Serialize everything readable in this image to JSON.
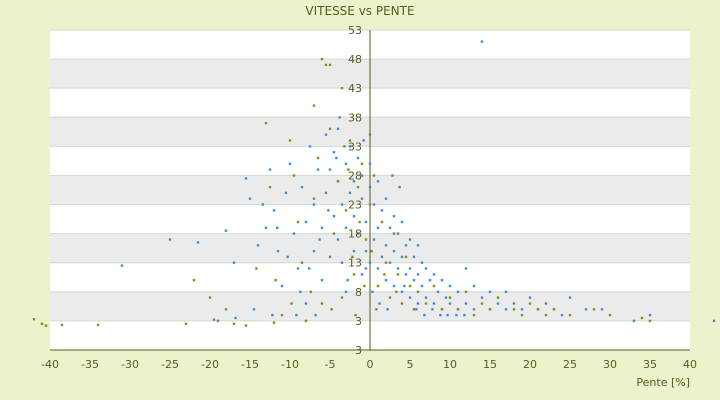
{
  "chart_data": {
    "type": "scatter",
    "title": "VITESSE vs PENTE",
    "xlabel": "Pente [%]",
    "ylabel": "",
    "xlim": [
      -40,
      40
    ],
    "ylim": [
      -2,
      53
    ],
    "x_ticks": [
      "-40",
      "-35",
      "-30",
      "-25",
      "-20",
      "-15",
      "-10",
      "-5",
      "0",
      "5",
      "10",
      "15",
      "20",
      "25",
      "30",
      "35",
      "40"
    ],
    "y_ticks": [
      "53",
      "48",
      "43",
      "38",
      "33",
      "28",
      "23",
      "18",
      "13",
      "8",
      "3",
      "3"
    ],
    "grid": true,
    "legend": "none",
    "colors": {
      "series_a": "#3a8ed8",
      "series_b": "#8a8a14",
      "band": "#ebebeb",
      "axis": "#5a5a1e"
    },
    "series": [
      {
        "color": "#3a8ed8",
        "points": [
          [
            -31,
            12.5
          ],
          [
            -25,
            17
          ],
          [
            -21.5,
            16.5
          ],
          [
            -18,
            18.5
          ],
          [
            -17,
            13
          ],
          [
            -15.5,
            27.5
          ],
          [
            -15,
            24
          ],
          [
            -14,
            16
          ],
          [
            -13,
            19
          ],
          [
            -12.5,
            29
          ],
          [
            -12,
            22
          ],
          [
            -11.5,
            15
          ],
          [
            -11,
            9
          ],
          [
            -10.5,
            25
          ],
          [
            -10,
            30
          ],
          [
            -9.5,
            18
          ],
          [
            -9,
            12
          ],
          [
            -8.5,
            26
          ],
          [
            -8,
            20
          ],
          [
            -8,
            6
          ],
          [
            -7.5,
            33
          ],
          [
            -7,
            15
          ],
          [
            -7,
            23
          ],
          [
            -6.5,
            29
          ],
          [
            -6,
            10
          ],
          [
            -6,
            19
          ],
          [
            -5.5,
            35
          ],
          [
            -5.5,
            25
          ],
          [
            -5,
            14
          ],
          [
            -5,
            29
          ],
          [
            -4.5,
            21
          ],
          [
            -4.5,
            32
          ],
          [
            -4,
            17
          ],
          [
            -4,
            27
          ],
          [
            -4,
            36
          ],
          [
            -3.5,
            23
          ],
          [
            -3.5,
            13
          ],
          [
            -3,
            30
          ],
          [
            -3,
            19
          ],
          [
            -3,
            8
          ],
          [
            -2.5,
            25
          ],
          [
            -2.5,
            33
          ],
          [
            -2,
            21
          ],
          [
            -2,
            15
          ],
          [
            -2,
            27
          ],
          [
            -1.5,
            18
          ],
          [
            -1.5,
            31
          ],
          [
            -1,
            24
          ],
          [
            -1,
            11
          ],
          [
            -1,
            28
          ],
          [
            -0.5,
            20
          ],
          [
            -0.5,
            15
          ],
          [
            0,
            26
          ],
          [
            0,
            13
          ],
          [
            0,
            30
          ],
          [
            0.5,
            17
          ],
          [
            0.5,
            23
          ],
          [
            1,
            12
          ],
          [
            1,
            19
          ],
          [
            1,
            27
          ],
          [
            1.5,
            14
          ],
          [
            1.5,
            22
          ],
          [
            2,
            10
          ],
          [
            2,
            16
          ],
          [
            2,
            24
          ],
          [
            2.5,
            13
          ],
          [
            2.5,
            19
          ],
          [
            3,
            9
          ],
          [
            3,
            15
          ],
          [
            3,
            21
          ],
          [
            3.5,
            12
          ],
          [
            3.5,
            18
          ],
          [
            4,
            8
          ],
          [
            4,
            14
          ],
          [
            4,
            20
          ],
          [
            4.5,
            11
          ],
          [
            4.5,
            16
          ],
          [
            5,
            7
          ],
          [
            5,
            12
          ],
          [
            5,
            17
          ],
          [
            5.5,
            10
          ],
          [
            5.5,
            14
          ],
          [
            6,
            6
          ],
          [
            6,
            11
          ],
          [
            6,
            16
          ],
          [
            6.5,
            9
          ],
          [
            6.5,
            13
          ],
          [
            7,
            7
          ],
          [
            7,
            12
          ],
          [
            7.5,
            10
          ],
          [
            8,
            6
          ],
          [
            8,
            11
          ],
          [
            8.5,
            8
          ],
          [
            9,
            5
          ],
          [
            9,
            10
          ],
          [
            9.5,
            7
          ],
          [
            10,
            6
          ],
          [
            10,
            9
          ],
          [
            11,
            5
          ],
          [
            11,
            8
          ],
          [
            12,
            6
          ],
          [
            12,
            12
          ],
          [
            13,
            5
          ],
          [
            13,
            9
          ],
          [
            14,
            51
          ],
          [
            14,
            7
          ],
          [
            15,
            5
          ],
          [
            15,
            8
          ],
          [
            16,
            6
          ],
          [
            17,
            5
          ],
          [
            17,
            8
          ],
          [
            18,
            6
          ],
          [
            19,
            5
          ],
          [
            20,
            7
          ],
          [
            21,
            5
          ],
          [
            22,
            6
          ],
          [
            23,
            5
          ],
          [
            24,
            4
          ],
          [
            25,
            7
          ],
          [
            27,
            5
          ],
          [
            29,
            5
          ],
          [
            33,
            3
          ],
          [
            35,
            4
          ],
          [
            43,
            3
          ],
          [
            -0.5,
            12
          ],
          [
            0.3,
            8
          ],
          [
            1.2,
            6
          ],
          [
            2.2,
            5
          ],
          [
            -2.8,
            10
          ],
          [
            -6.8,
            4
          ],
          [
            -9.2,
            4
          ],
          [
            -12.2,
            4
          ],
          [
            -14.5,
            5
          ],
          [
            -16.8,
            3.5
          ],
          [
            -19.5,
            3.2
          ],
          [
            3.7,
            26
          ],
          [
            2.8,
            28
          ],
          [
            -0.8,
            34
          ],
          [
            -3.8,
            38
          ],
          [
            -4.2,
            31
          ],
          [
            -5.2,
            22
          ],
          [
            -6.3,
            17
          ],
          [
            -7.6,
            12
          ],
          [
            -8.7,
            8
          ],
          [
            -10.3,
            14
          ],
          [
            -11.6,
            19
          ],
          [
            -13.4,
            23
          ],
          [
            4.3,
            9
          ],
          [
            5.8,
            5
          ],
          [
            6.8,
            4
          ],
          [
            7.8,
            5
          ],
          [
            8.8,
            4
          ],
          [
            9.7,
            4
          ],
          [
            10.8,
            4
          ],
          [
            11.8,
            4
          ]
        ]
      },
      {
        "color": "#8a8a14",
        "points": [
          [
            -42,
            3.3
          ],
          [
            -41,
            2.5
          ],
          [
            -40.5,
            2.2
          ],
          [
            -38.5,
            2.3
          ],
          [
            -34,
            2.3
          ],
          [
            -23,
            2.5
          ],
          [
            -22,
            10
          ],
          [
            -20,
            7
          ],
          [
            -19,
            3
          ],
          [
            -18,
            5
          ],
          [
            -17,
            2.5
          ],
          [
            -15.5,
            2.2
          ],
          [
            -13,
            37
          ],
          [
            -12.5,
            26
          ],
          [
            -12,
            2.7
          ],
          [
            -11,
            4
          ],
          [
            -10,
            34
          ],
          [
            -9.5,
            28
          ],
          [
            -9,
            20
          ],
          [
            -8.5,
            13
          ],
          [
            -8,
            3
          ],
          [
            -7,
            40
          ],
          [
            -7,
            24
          ],
          [
            -6.5,
            31
          ],
          [
            -6,
            6
          ],
          [
            -6,
            48
          ],
          [
            -5.5,
            47
          ],
          [
            -5,
            47
          ],
          [
            -5,
            36
          ],
          [
            -4.5,
            18
          ],
          [
            -4,
            27
          ],
          [
            -3.5,
            43
          ],
          [
            -3.5,
            7
          ],
          [
            -3,
            22
          ],
          [
            -2.5,
            34
          ],
          [
            -2,
            11
          ],
          [
            -1.5,
            26
          ],
          [
            -1,
            30
          ],
          [
            -0.5,
            17
          ],
          [
            0,
            23
          ],
          [
            0,
            35
          ],
          [
            0.5,
            28
          ],
          [
            1,
            9
          ],
          [
            1.5,
            20
          ],
          [
            2,
            13
          ],
          [
            2.5,
            7
          ],
          [
            3,
            18
          ],
          [
            3.5,
            11
          ],
          [
            4,
            6
          ],
          [
            4.5,
            14
          ],
          [
            5,
            9
          ],
          [
            5.5,
            5
          ],
          [
            6,
            8
          ],
          [
            7,
            6
          ],
          [
            8,
            9
          ],
          [
            9,
            5
          ],
          [
            10,
            7
          ],
          [
            11,
            5
          ],
          [
            12,
            8
          ],
          [
            13,
            4
          ],
          [
            14,
            6
          ],
          [
            15,
            5
          ],
          [
            16,
            7
          ],
          [
            18,
            5
          ],
          [
            19,
            4
          ],
          [
            20,
            6
          ],
          [
            21,
            5
          ],
          [
            22,
            4
          ],
          [
            23,
            5
          ],
          [
            25,
            4
          ],
          [
            28,
            5
          ],
          [
            30,
            4
          ],
          [
            34,
            3.5
          ],
          [
            35,
            3
          ],
          [
            -2.2,
            14
          ],
          [
            -0.7,
            9
          ],
          [
            0.8,
            5
          ],
          [
            -1.8,
            4
          ],
          [
            -4.8,
            5
          ],
          [
            -7.4,
            8
          ],
          [
            -9.8,
            6
          ],
          [
            -11.8,
            10
          ],
          [
            -14.2,
            12
          ],
          [
            -3.2,
            33
          ],
          [
            -2.7,
            29
          ],
          [
            -1.3,
            20
          ],
          [
            0.2,
            15
          ],
          [
            1.8,
            11
          ],
          [
            3.3,
            8
          ]
        ]
      }
    ]
  }
}
